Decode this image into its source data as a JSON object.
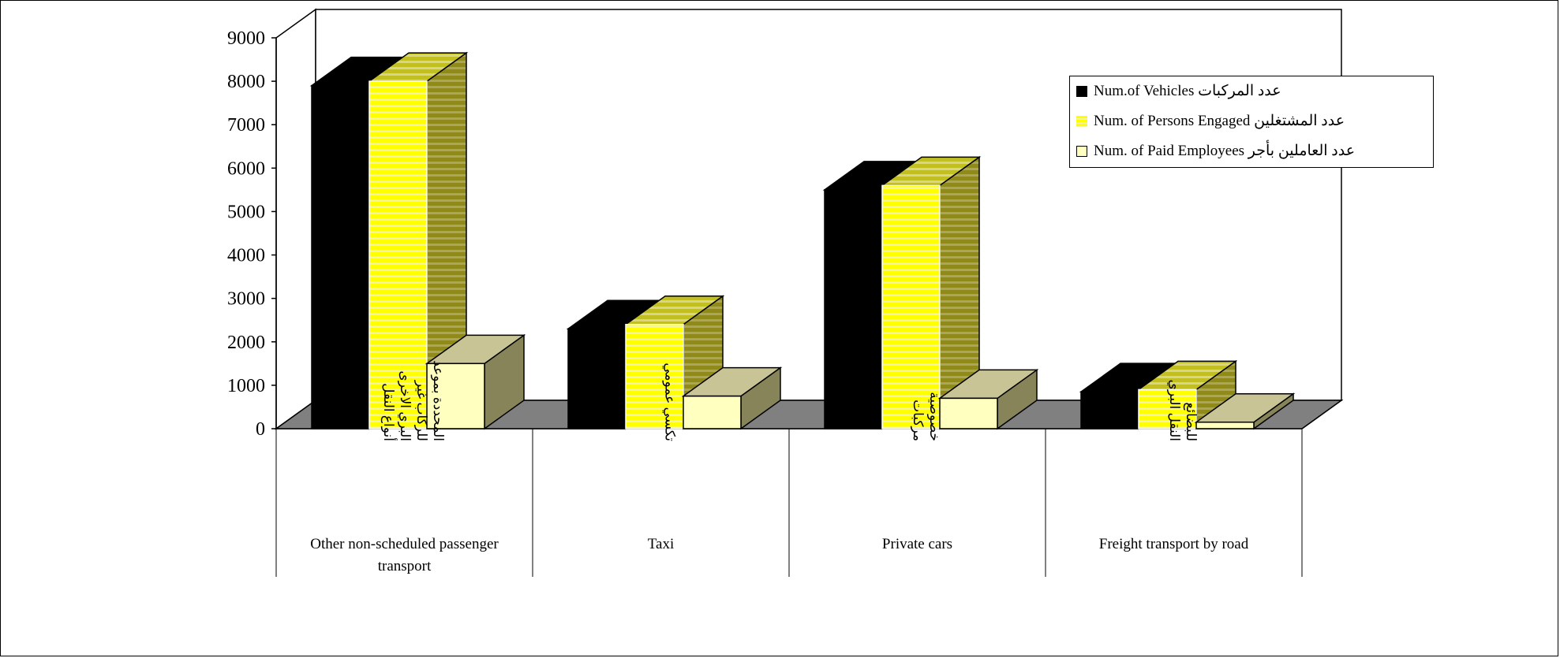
{
  "chart_data": {
    "type": "bar",
    "title": "",
    "xlabel": "",
    "ylabel": "",
    "ylim": [
      0,
      9000
    ],
    "yticks": [
      0,
      1000,
      2000,
      3000,
      4000,
      5000,
      6000,
      7000,
      8000,
      9000
    ],
    "categories": [
      {
        "en": "Other non-scheduled passenger transport",
        "ar": [
          "أنواع النقل",
          "البري الاخرى",
          "للركاب غير",
          "المحددة بموعد"
        ]
      },
      {
        "en": "Taxi",
        "ar": [
          "تكسي عمومي"
        ]
      },
      {
        "en": "Private cars",
        "ar": [
          "مركبات",
          "خصوصية"
        ]
      },
      {
        "en": "Freight transport  by road",
        "ar": [
          "النقل البري",
          "للبضائع"
        ]
      }
    ],
    "series": [
      {
        "name": "Num.of Vehicles عدد  المركبات",
        "values": [
          7900,
          2300,
          5500,
          850
        ],
        "color": "#000000"
      },
      {
        "name": "Num. of Persons  Engaged عدد المشتغلين",
        "values": [
          8000,
          2400,
          5600,
          900
        ],
        "color": "#ffff00"
      },
      {
        "name": "Num. of Paid Employees عدد العاملين بأجر",
        "values": [
          1500,
          750,
          700,
          150
        ],
        "color": "#ffffc0"
      }
    ],
    "legend": "top-right",
    "grid": false,
    "style": "3d-bar"
  }
}
